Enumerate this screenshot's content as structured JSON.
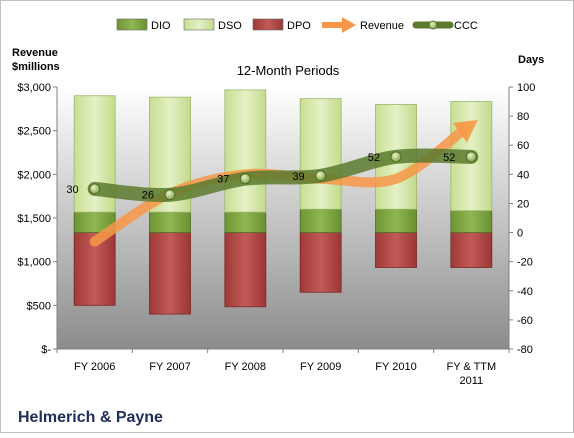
{
  "chart_data": {
    "type": "bar",
    "title": "12-Month Periods",
    "left_axis_title_lines": [
      "Revenue",
      "$millions"
    ],
    "right_axis_title": "Days",
    "company_name": "Helmerich & Payne",
    "categories": [
      "FY 2006",
      "FY 2007",
      "FY 2008",
      "FY 2009",
      "FY 2010",
      "FY & TTM 2011"
    ],
    "category_label_lines": [
      [
        "FY 2006"
      ],
      [
        "FY 2007"
      ],
      [
        "FY 2008"
      ],
      [
        "FY 2009"
      ],
      [
        "FY 2010"
      ],
      [
        "FY & TTM",
        "2011"
      ]
    ],
    "left_axis": {
      "min": 0,
      "max": 3000,
      "step": 500,
      "tick_labels": [
        "$-",
        "$500",
        "$1,000",
        "$1,500",
        "$2,000",
        "$2,500",
        "$3,000"
      ]
    },
    "right_axis": {
      "min": -80,
      "max": 100,
      "step": 20,
      "tick_labels": [
        "-80",
        "-60",
        "-40",
        "-20",
        "0",
        "20",
        "40",
        "60",
        "80",
        "100"
      ]
    },
    "legend_position": "top",
    "legend": [
      {
        "name": "DIO",
        "kind": "box",
        "color": "#7aa23f"
      },
      {
        "name": "DSO",
        "kind": "box",
        "color": "#d4e8a6"
      },
      {
        "name": "DPO",
        "kind": "box",
        "color": "#b04846"
      },
      {
        "name": "Revenue",
        "kind": "arrow",
        "color": "#f79646"
      },
      {
        "name": "CCC",
        "kind": "line",
        "color": "#5a7a2e"
      }
    ],
    "series": [
      {
        "name": "DIO",
        "axis": "right",
        "color": "#7aa23f",
        "values": [
          14,
          14,
          14,
          16,
          16,
          15
        ]
      },
      {
        "name": "DSO",
        "axis": "right",
        "color": "#d4e8a6",
        "values": [
          80,
          79,
          84,
          76,
          72,
          75
        ]
      },
      {
        "name": "DPO",
        "axis": "right",
        "color": "#b04846",
        "values": [
          -50,
          -56,
          -51,
          -41,
          -24,
          -24
        ]
      },
      {
        "name": "Revenue",
        "axis": "left",
        "color": "#f79646",
        "values": [
          1230,
          1780,
          2000,
          1950,
          1950,
          2570
        ]
      },
      {
        "name": "CCC",
        "axis": "right",
        "color": "#5a7a2e",
        "values": [
          30,
          26,
          37,
          39,
          52,
          52
        ],
        "labels": [
          "30",
          "26",
          "37",
          "39",
          "52",
          "52"
        ]
      }
    ]
  }
}
